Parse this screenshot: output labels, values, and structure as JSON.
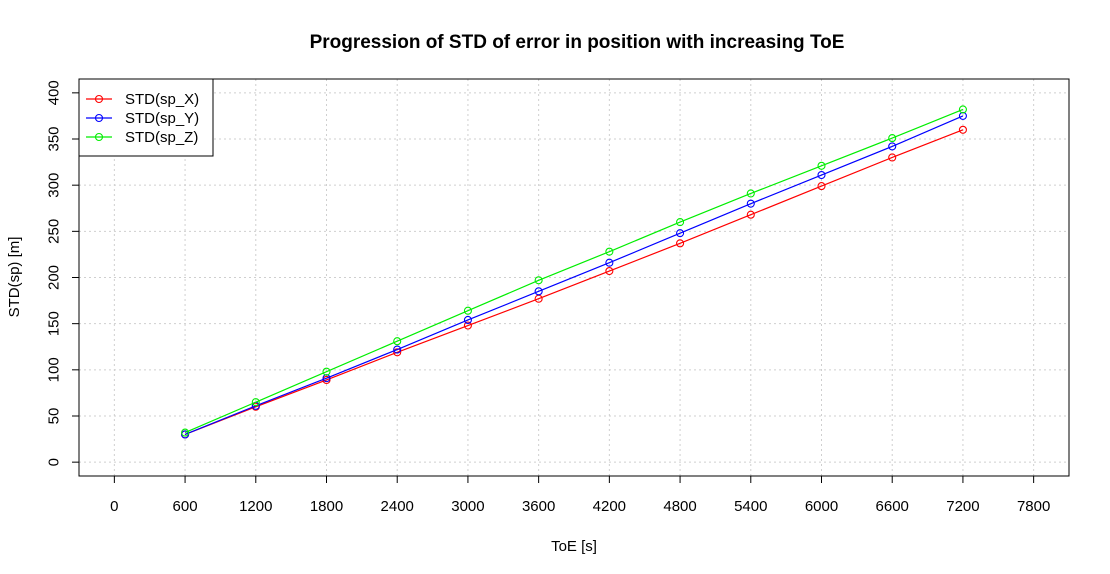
{
  "chart_data": {
    "type": "line",
    "title": "Progression of STD of error in position with increasing ToE",
    "xlabel": "ToE [s]",
    "ylabel": "STD(sp) [m]",
    "x": [
      600,
      1200,
      1800,
      2400,
      3000,
      3600,
      4200,
      4800,
      5400,
      6000,
      6600,
      7200
    ],
    "xticks": [
      0,
      600,
      1200,
      1800,
      2400,
      3000,
      3600,
      4200,
      4800,
      5400,
      6000,
      6600,
      7200,
      7800
    ],
    "yticks": [
      0,
      50,
      100,
      150,
      200,
      250,
      300,
      350,
      400
    ],
    "xlim": [
      -300,
      8100
    ],
    "ylim": [
      -15,
      415
    ],
    "grid": true,
    "legend_position": "top-left",
    "series": [
      {
        "name": "STD(sp_X)",
        "color": "#ff0000",
        "values": [
          30,
          60,
          89,
          119,
          148,
          177,
          207,
          237,
          268,
          299,
          330,
          360
        ]
      },
      {
        "name": "STD(sp_Y)",
        "color": "#0000ff",
        "values": [
          30,
          61,
          91,
          122,
          154,
          185,
          216,
          248,
          280,
          311,
          342,
          375
        ]
      },
      {
        "name": "STD(sp_Z)",
        "color": "#00ee00",
        "values": [
          32,
          65,
          98,
          131,
          164,
          197,
          228,
          260,
          291,
          321,
          351,
          382
        ]
      }
    ]
  }
}
